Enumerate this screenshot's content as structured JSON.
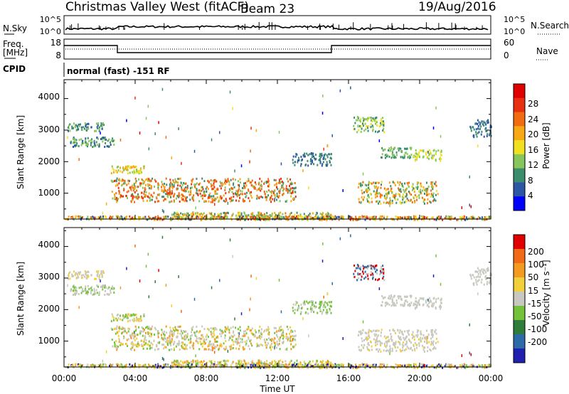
{
  "header": {
    "radar": "Christmas Valley West (fitACF)",
    "beam": "Beam 23",
    "date": "19/Aug/2016"
  },
  "top_panels": {
    "nsky_label": "N.Sky",
    "nsky_ticks": [
      "10^5",
      "10^0"
    ],
    "nsearch_label": "N.Search",
    "nsearch_ticks": [
      "10^5",
      "10^0"
    ],
    "freq_label": "Freq.",
    "freq_unit": "[MHz]",
    "freq_ticks": [
      "18",
      "8"
    ],
    "nave_label": "Nave",
    "nave_ticks": [
      "60",
      "0"
    ],
    "cpid_label": "CPID",
    "cpid_text": "normal (fast) -151 RF"
  },
  "colors": {
    "power": [
      "#0000ff",
      "#2d56a5",
      "#3c8c6e",
      "#86c65a",
      "#f0e020",
      "#f7a812",
      "#f36b10",
      "#e83010",
      "#e00000"
    ],
    "velocity": [
      "#2020b0",
      "#2c6aa8",
      "#2f7d3a",
      "#74c23a",
      "#c8c8c0",
      "#f2d03a",
      "#f59a20",
      "#f26a18",
      "#e00000"
    ]
  },
  "chart_data": [
    {
      "type": "heatmap",
      "ylabel": "Slant Range [km]",
      "yticks": [
        "4000",
        "3000",
        "2000",
        "1000"
      ],
      "ylim": [
        180,
        4600
      ],
      "xlim": [
        "00:00",
        "24:00"
      ],
      "colorbar_label": "Power [dB]",
      "colorbar_ticks": [
        "28",
        "24",
        "20",
        "16",
        "12",
        "8",
        "4"
      ],
      "colorbar_range": [
        0,
        32
      ]
    },
    {
      "type": "heatmap",
      "ylabel": "Slant Range [km]",
      "yticks": [
        "4000",
        "3000",
        "2000",
        "1000"
      ],
      "ylim": [
        180,
        4600
      ],
      "xlabel": "Time UT",
      "xticks": [
        "00:00",
        "04:00",
        "08:00",
        "12:00",
        "16:00",
        "20:00",
        "00:00"
      ],
      "xlim": [
        "00:00",
        "24:00"
      ],
      "colorbar_label": "Velocity [m s⁻¹]",
      "colorbar_ticks": [
        "200",
        "100",
        "50",
        "15",
        "-15",
        "-50",
        "-100",
        "-200"
      ],
      "colorbar_range": [
        -250,
        250
      ]
    }
  ]
}
